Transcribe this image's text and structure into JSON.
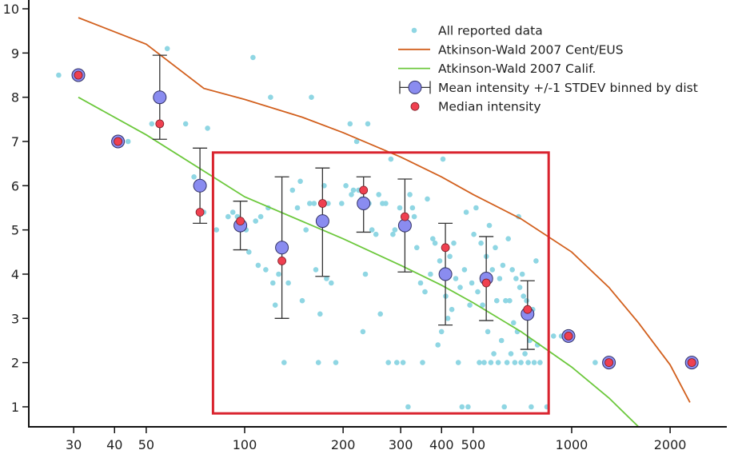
{
  "chart_data": {
    "type": "scatter",
    "title": "",
    "xlabel": "",
    "ylabel": "",
    "xscale": "log",
    "xlim": [
      22,
      2900
    ],
    "ylim": [
      0.55,
      10.2
    ],
    "x_ticks": [
      30,
      40,
      50,
      100,
      200,
      300,
      400,
      500,
      1000,
      2000
    ],
    "x_tick_labels": [
      "30",
      "40",
      "50",
      "100",
      "200",
      "300",
      "400",
      "500",
      "1000",
      "2000"
    ],
    "y_ticks": [
      1,
      2,
      3,
      4,
      5,
      6,
      7,
      8,
      9,
      10
    ],
    "y_tick_labels": [
      "1",
      "2",
      "3",
      "4",
      "5",
      "6",
      "7",
      "8",
      "9",
      "10"
    ],
    "grid": false,
    "legend_position": "top-right",
    "colors": {
      "scatter": "#8fd6e3",
      "cent_eus": "#d2601e",
      "calif": "#6cc83c",
      "mean_fill": "#8a8cf0",
      "mean_stroke": "#333366",
      "median_fill": "#ef4050",
      "errorbar": "#333333",
      "highlight_box": "#d9232e",
      "axis": "#111111"
    },
    "legend": [
      {
        "key": "scatter",
        "label": "All reported data"
      },
      {
        "key": "cent_eus",
        "label": "Atkinson-Wald 2007 Cent/EUS"
      },
      {
        "key": "calif",
        "label": "Atkinson-Wald 2007 Calif."
      },
      {
        "key": "mean",
        "label": "Mean intensity +/-1 STDEV binned by dist"
      },
      {
        "key": "median",
        "label": "Median intensity"
      }
    ],
    "series": [
      {
        "name": "Atkinson-Wald 2007 Cent/EUS",
        "type": "line",
        "x": [
          31,
          50,
          75,
          100,
          150,
          200,
          300,
          400,
          500,
          700,
          1000,
          1300,
          1600,
          2000,
          2300
        ],
        "y": [
          9.8,
          9.2,
          8.2,
          7.95,
          7.55,
          7.2,
          6.65,
          6.2,
          5.8,
          5.25,
          4.5,
          3.7,
          2.9,
          1.95,
          1.1
        ]
      },
      {
        "name": "Atkinson-Wald 2007 Calif.",
        "type": "line",
        "x": [
          31,
          50,
          100,
          200,
          300,
          400,
          500,
          700,
          1000,
          1300,
          1600
        ],
        "y": [
          8.0,
          7.15,
          5.75,
          4.8,
          4.2,
          3.75,
          3.35,
          2.7,
          1.9,
          1.2,
          0.55
        ]
      },
      {
        "name": "Mean intensity +/-1 STDEV binned by dist",
        "type": "errorbar",
        "x": [
          31,
          41,
          55,
          73,
          97,
          130,
          173,
          231,
          309,
          411,
          548,
          733,
          978,
          1300,
          2330
        ],
        "y": [
          8.5,
          7.0,
          8.0,
          6.0,
          5.1,
          4.6,
          5.2,
          5.6,
          5.1,
          4.0,
          3.9,
          3.1,
          2.6,
          2.0,
          2.0
        ],
        "lower": [
          null,
          null,
          7.05,
          5.15,
          4.55,
          3.0,
          3.95,
          4.95,
          4.05,
          2.85,
          2.95,
          2.3,
          null,
          null,
          null
        ],
        "upper": [
          null,
          null,
          8.95,
          6.85,
          5.65,
          6.2,
          6.4,
          6.2,
          6.15,
          5.15,
          4.85,
          3.85,
          null,
          null,
          null
        ]
      },
      {
        "name": "Median intensity",
        "type": "scatter",
        "x": [
          31,
          41,
          55,
          73,
          97,
          130,
          173,
          231,
          309,
          411,
          548,
          733,
          978,
          1300,
          2330
        ],
        "y": [
          8.5,
          7.0,
          7.4,
          5.4,
          5.2,
          4.3,
          5.6,
          5.9,
          5.3,
          4.6,
          3.8,
          3.2,
          2.6,
          2.0,
          2.0
        ]
      },
      {
        "name": "All reported data",
        "type": "scatter",
        "points": [
          [
            27,
            8.5
          ],
          [
            44,
            7.0
          ],
          [
            52,
            7.4
          ],
          [
            58,
            9.1
          ],
          [
            66,
            7.4
          ],
          [
            70,
            6.2
          ],
          [
            75,
            5.4
          ],
          [
            77,
            7.3
          ],
          [
            82,
            5.0
          ],
          [
            89,
            5.3
          ],
          [
            92,
            5.4
          ],
          [
            95,
            5.3
          ],
          [
            101,
            5.0
          ],
          [
            103,
            4.5
          ],
          [
            106,
            8.9
          ],
          [
            108,
            5.2
          ],
          [
            110,
            4.2
          ],
          [
            112,
            5.3
          ],
          [
            116,
            4.1
          ],
          [
            118,
            5.5
          ],
          [
            120,
            8.0
          ],
          [
            122,
            3.8
          ],
          [
            124,
            3.3
          ],
          [
            127,
            4.0
          ],
          [
            132,
            2.0
          ],
          [
            136,
            3.8
          ],
          [
            140,
            5.9
          ],
          [
            145,
            5.5
          ],
          [
            148,
            6.1
          ],
          [
            150,
            3.4
          ],
          [
            154,
            5.0
          ],
          [
            158,
            5.6
          ],
          [
            160,
            8.0
          ],
          [
            163,
            5.6
          ],
          [
            165,
            4.1
          ],
          [
            168,
            2.0
          ],
          [
            170,
            3.1
          ],
          [
            175,
            6.0
          ],
          [
            178,
            3.9
          ],
          [
            180,
            5.6
          ],
          [
            184,
            3.8
          ],
          [
            190,
            2.0
          ],
          [
            198,
            5.6
          ],
          [
            204,
            6.0
          ],
          [
            210,
            7.4
          ],
          [
            212,
            5.8
          ],
          [
            215,
            5.9
          ],
          [
            220,
            7.0
          ],
          [
            223,
            5.9
          ],
          [
            228,
            5.7
          ],
          [
            230,
            2.7
          ],
          [
            234,
            4.0
          ],
          [
            238,
            7.4
          ],
          [
            240,
            5.6
          ],
          [
            245,
            5.0
          ],
          [
            252,
            4.9
          ],
          [
            257,
            5.8
          ],
          [
            260,
            3.1
          ],
          [
            264,
            5.6
          ],
          [
            270,
            5.6
          ],
          [
            275,
            2.0
          ],
          [
            280,
            6.6
          ],
          [
            284,
            4.9
          ],
          [
            288,
            5.0
          ],
          [
            292,
            2.0
          ],
          [
            298,
            5.5
          ],
          [
            305,
            2.0
          ],
          [
            310,
            5.2
          ],
          [
            316,
            1.0
          ],
          [
            320,
            5.8
          ],
          [
            326,
            5.5
          ],
          [
            330,
            5.3
          ],
          [
            336,
            4.6
          ],
          [
            345,
            3.8
          ],
          [
            350,
            2.0
          ],
          [
            356,
            3.6
          ],
          [
            362,
            5.7
          ],
          [
            370,
            4.0
          ],
          [
            376,
            4.8
          ],
          [
            382,
            4.7
          ],
          [
            390,
            2.4
          ],
          [
            395,
            4.3
          ],
          [
            400,
            2.7
          ],
          [
            404,
            6.6
          ],
          [
            408,
            4.1
          ],
          [
            412,
            3.5
          ],
          [
            418,
            3.0
          ],
          [
            424,
            4.4
          ],
          [
            430,
            3.2
          ],
          [
            436,
            4.7
          ],
          [
            442,
            3.9
          ],
          [
            450,
            2.0
          ],
          [
            456,
            3.7
          ],
          [
            462,
            1.0
          ],
          [
            470,
            4.1
          ],
          [
            476,
            5.4
          ],
          [
            482,
            1.0
          ],
          [
            488,
            3.3
          ],
          [
            495,
            3.8
          ],
          [
            502,
            4.9
          ],
          [
            510,
            5.5
          ],
          [
            516,
            3.6
          ],
          [
            522,
            2.0
          ],
          [
            528,
            4.7
          ],
          [
            534,
            3.3
          ],
          [
            540,
            2.0
          ],
          [
            548,
            4.4
          ],
          [
            554,
            2.7
          ],
          [
            560,
            5.1
          ],
          [
            566,
            2.0
          ],
          [
            572,
            4.1
          ],
          [
            578,
            2.2
          ],
          [
            584,
            4.6
          ],
          [
            590,
            3.4
          ],
          [
            596,
            2.0
          ],
          [
            602,
            3.9
          ],
          [
            610,
            2.5
          ],
          [
            616,
            4.2
          ],
          [
            622,
            1.0
          ],
          [
            628,
            3.4
          ],
          [
            634,
            2.0
          ],
          [
            640,
            4.8
          ],
          [
            646,
            3.4
          ],
          [
            652,
            2.2
          ],
          [
            658,
            4.1
          ],
          [
            664,
            2.9
          ],
          [
            670,
            2.0
          ],
          [
            676,
            3.9
          ],
          [
            682,
            2.7
          ],
          [
            688,
            5.3
          ],
          [
            694,
            3.7
          ],
          [
            700,
            2.0
          ],
          [
            706,
            4.0
          ],
          [
            712,
            3.5
          ],
          [
            720,
            2.2
          ],
          [
            728,
            3.4
          ],
          [
            736,
            2.0
          ],
          [
            744,
            2.5
          ],
          [
            752,
            1.0
          ],
          [
            760,
            3.2
          ],
          [
            768,
            2.0
          ],
          [
            778,
            4.3
          ],
          [
            786,
            2.4
          ],
          [
            800,
            2.0
          ],
          [
            840,
            1.0
          ],
          [
            880,
            2.6
          ],
          [
            1180,
            2.0
          ],
          [
            930,
            2.6
          ]
        ]
      }
    ],
    "annotations": [
      {
        "type": "rectangle",
        "label": "",
        "x_range": [
          80,
          850
        ],
        "y_range": [
          0.85,
          6.75
        ]
      }
    ]
  }
}
